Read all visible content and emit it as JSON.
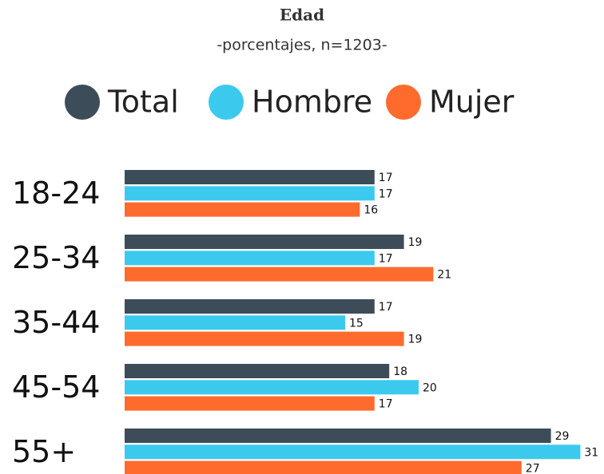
{
  "chart_data": {
    "type": "bar",
    "orientation": "horizontal",
    "title": "Edad",
    "subtitle": "-porcentajes, n=1203-",
    "categories": [
      "18-24",
      "25-34",
      "35-44",
      "45-54",
      "55+"
    ],
    "series": [
      {
        "name": "Total",
        "color": "#3d4c59",
        "values": [
          17,
          19,
          17,
          18,
          29
        ]
      },
      {
        "name": "Hombre",
        "color": "#3cc9ee",
        "values": [
          17,
          17,
          15,
          20,
          31
        ]
      },
      {
        "name": "Mujer",
        "color": "#ff6b2c",
        "values": [
          16,
          21,
          19,
          17,
          27
        ]
      }
    ]
  }
}
